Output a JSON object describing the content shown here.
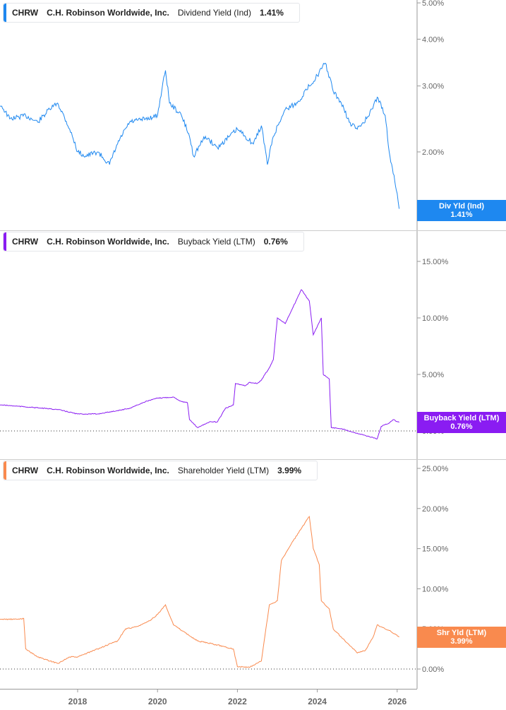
{
  "chart_data": [
    {
      "type": "line",
      "ticker": "CHRW",
      "company": "C.H. Robinson Worldwide, Inc.",
      "metric": "Dividend Yield (Ind)",
      "last_value": "1.41%",
      "badge_title": "Div Yld (Ind)",
      "color": "#1e88f0",
      "scale": "log",
      "yticks": [
        "5.00%",
        "4.00%",
        "3.00%",
        "2.00%"
      ],
      "ytick_values": [
        5,
        4,
        3,
        2
      ],
      "x": [
        2016.1,
        2016.3,
        2016.7,
        2017.0,
        2017.3,
        2017.5,
        2017.8,
        2018.0,
        2018.2,
        2018.5,
        2018.8,
        2019.0,
        2019.3,
        2019.7,
        2020.0,
        2020.2,
        2020.3,
        2020.6,
        2020.8,
        2020.9,
        2021.2,
        2021.5,
        2021.8,
        2022.0,
        2022.2,
        2022.4,
        2022.6,
        2022.75,
        2022.9,
        2023.2,
        2023.5,
        2023.8,
        2024.0,
        2024.2,
        2024.4,
        2024.6,
        2024.8,
        2025.0,
        2025.3,
        2025.5,
        2025.7,
        2025.8,
        2025.9,
        2026.0,
        2026.05
      ],
      "y": [
        2.65,
        2.45,
        2.5,
        2.4,
        2.6,
        2.7,
        2.3,
        2.0,
        1.95,
        2.0,
        1.85,
        2.1,
        2.4,
        2.45,
        2.5,
        3.3,
        2.7,
        2.5,
        2.2,
        1.95,
        2.2,
        2.05,
        2.2,
        2.3,
        2.2,
        2.1,
        2.35,
        1.85,
        2.2,
        2.6,
        2.7,
        3.0,
        3.2,
        3.45,
        2.9,
        2.7,
        2.4,
        2.3,
        2.5,
        2.8,
        2.5,
        2.0,
        1.75,
        1.55,
        1.41
      ]
    },
    {
      "type": "line",
      "ticker": "CHRW",
      "company": "C.H. Robinson Worldwide, Inc.",
      "metric": "Buyback Yield (LTM)",
      "last_value": "0.76%",
      "badge_title": "Buyback Yield (LTM)",
      "color": "#8a1cf2",
      "scale": "linear",
      "yticks": [
        "15.00%",
        "10.00%",
        "5.00%",
        "0.00%"
      ],
      "ytick_values": [
        15,
        10,
        5,
        0
      ],
      "x": [
        2016.1,
        2016.8,
        2017.5,
        2018.0,
        2018.5,
        2019.0,
        2019.3,
        2019.7,
        2020.0,
        2020.4,
        2020.6,
        2020.75,
        2020.8,
        2021.0,
        2021.3,
        2021.5,
        2021.7,
        2021.9,
        2021.95,
        2022.2,
        2022.3,
        2022.5,
        2022.6,
        2022.8,
        2022.9,
        2023.0,
        2023.2,
        2023.4,
        2023.6,
        2023.8,
        2023.9,
        2024.1,
        2024.15,
        2024.3,
        2024.35,
        2024.6,
        2025.0,
        2025.3,
        2025.5,
        2025.6,
        2025.8,
        2025.9,
        2026.05
      ],
      "y": [
        2.3,
        2.1,
        1.9,
        1.5,
        1.5,
        1.8,
        2.0,
        2.6,
        2.9,
        3.0,
        2.6,
        2.5,
        1.0,
        0.3,
        0.8,
        0.8,
        2.0,
        2.3,
        4.2,
        4.0,
        4.3,
        4.2,
        4.5,
        5.6,
        6.3,
        10,
        9.5,
        11,
        12.5,
        11.5,
        8.5,
        10,
        5,
        4.6,
        0.3,
        0.2,
        -0.2,
        -0.5,
        -0.7,
        0.4,
        0.7,
        1.0,
        0.76
      ]
    },
    {
      "type": "line",
      "ticker": "CHRW",
      "company": "C.H. Robinson Worldwide, Inc.",
      "metric": "Shareholder Yield (LTM)",
      "last_value": "3.99%",
      "badge_title": "Shr Yld (LTM)",
      "color": "#f98a4e",
      "scale": "linear",
      "yticks": [
        "25.00%",
        "20.00%",
        "15.00%",
        "10.00%",
        "5.00%",
        "0.00%"
      ],
      "ytick_values": [
        25,
        20,
        15,
        10,
        5,
        0
      ],
      "x": [
        2016.1,
        2016.5,
        2016.65,
        2016.7,
        2017.0,
        2017.5,
        2017.8,
        2018.0,
        2018.5,
        2019.0,
        2019.2,
        2019.5,
        2019.8,
        2020.0,
        2020.2,
        2020.4,
        2020.7,
        2021.0,
        2021.5,
        2021.9,
        2022.0,
        2022.3,
        2022.6,
        2022.8,
        2023.0,
        2023.1,
        2023.4,
        2023.6,
        2023.8,
        2023.9,
        2024.05,
        2024.1,
        2024.3,
        2024.4,
        2024.6,
        2024.8,
        2025.0,
        2025.2,
        2025.4,
        2025.5,
        2025.8,
        2026.05
      ],
      "y": [
        6.2,
        6.2,
        6.3,
        2.5,
        1.5,
        0.7,
        1.5,
        1.5,
        2.5,
        3.5,
        5.0,
        5.3,
        6.0,
        6.8,
        8.0,
        5.5,
        4.5,
        3.5,
        3.0,
        2.5,
        0.3,
        0.2,
        1.0,
        8.0,
        8.5,
        13.5,
        16,
        17.5,
        19,
        15,
        13,
        8.5,
        7.5,
        5,
        4,
        3,
        2,
        2.3,
        4,
        5.5,
        4.8,
        3.99
      ]
    }
  ],
  "xaxis": {
    "ticks": [
      "2018",
      "2020",
      "2022",
      "2024",
      "2026"
    ],
    "tick_values": [
      2018,
      2020,
      2022,
      2024,
      2026
    ]
  }
}
